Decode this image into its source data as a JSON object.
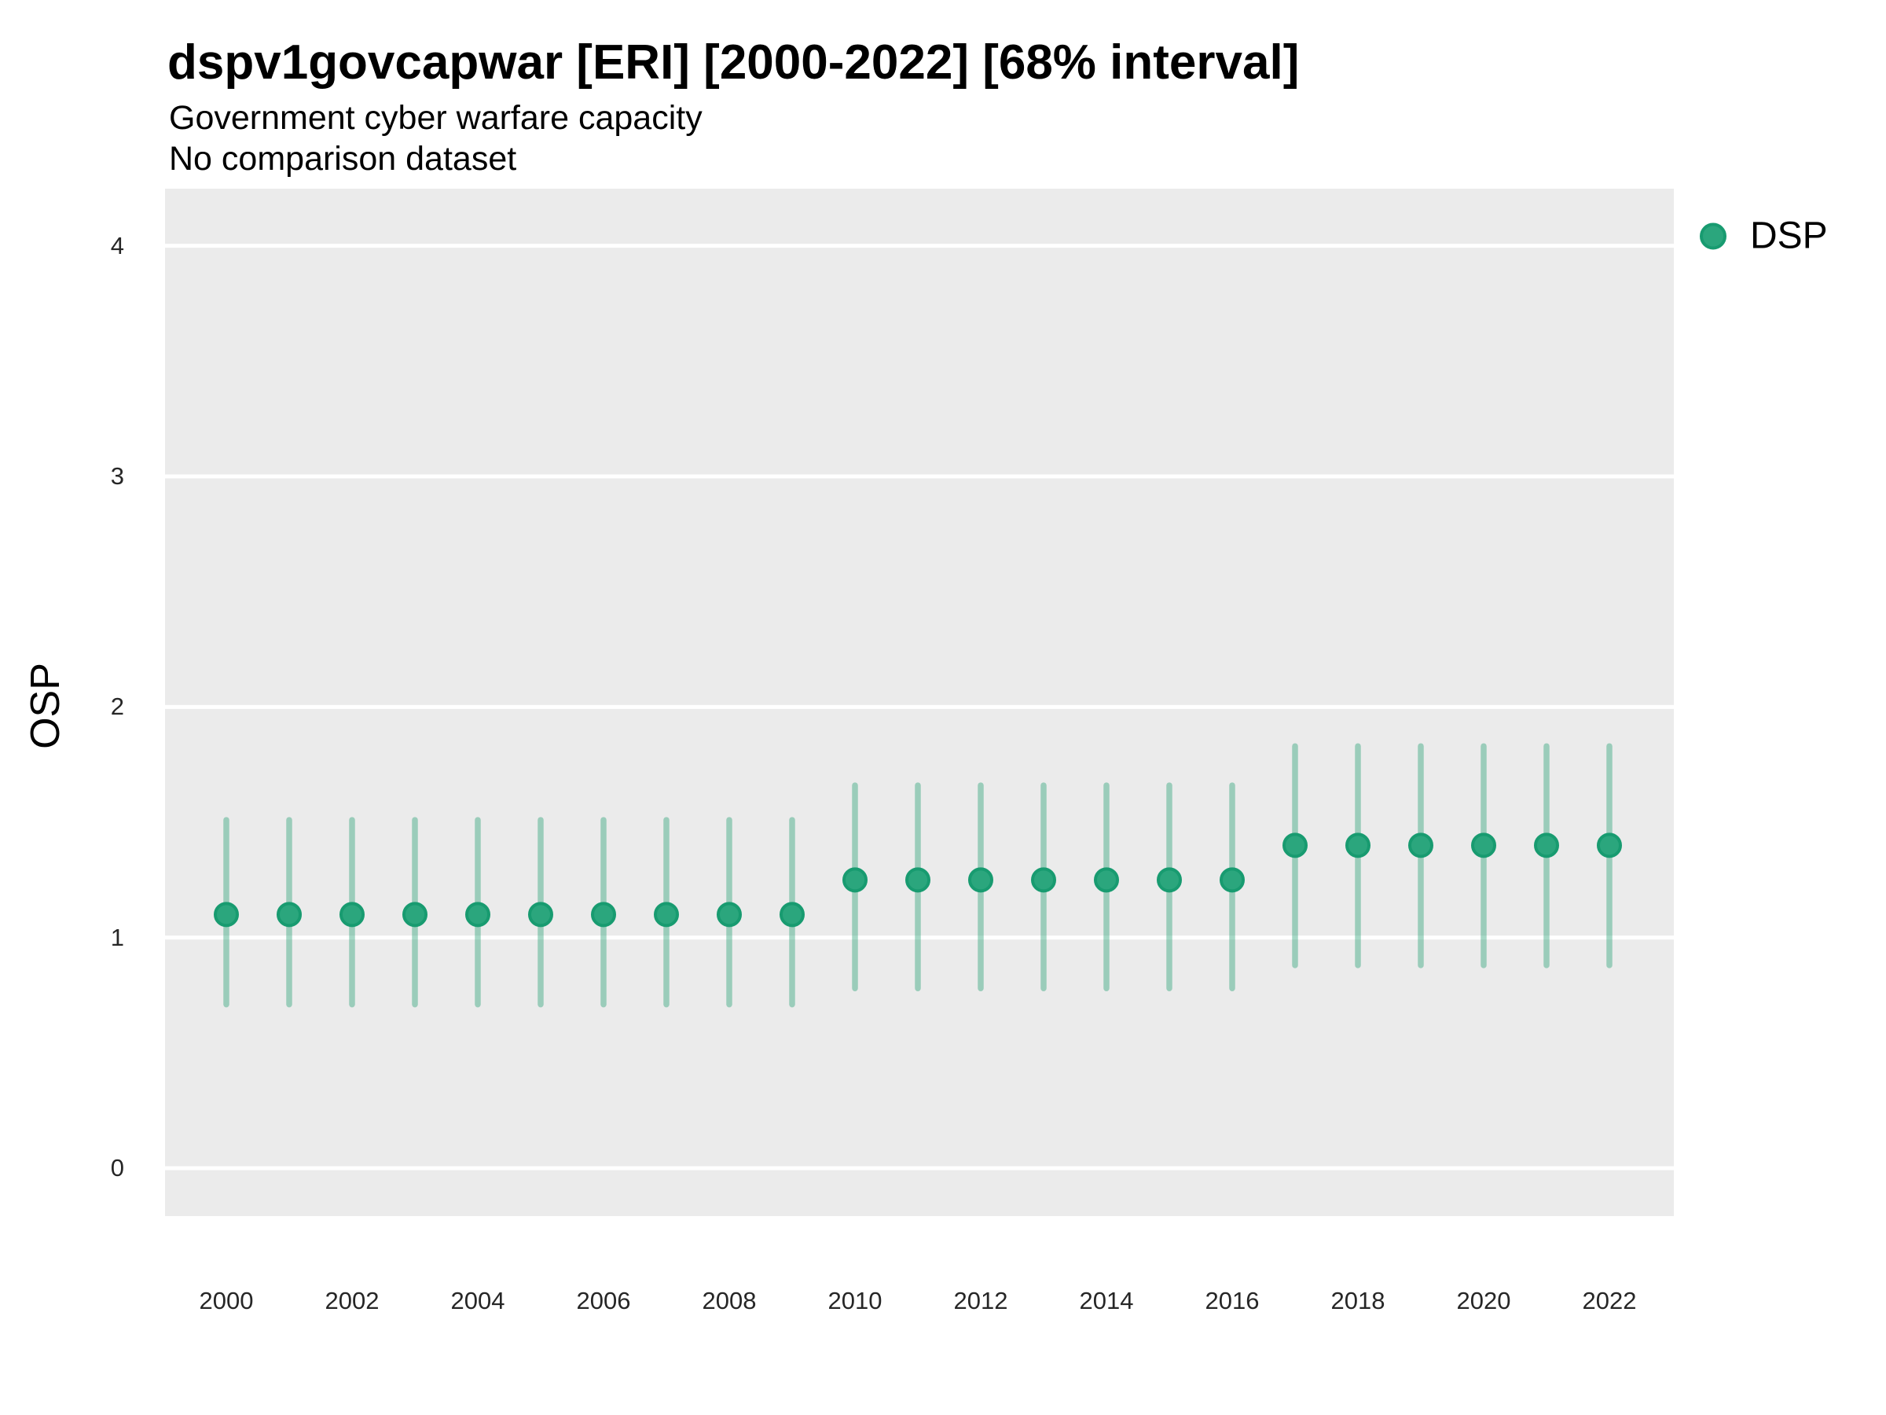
{
  "header": {
    "title": "dspv1govcapwar [ERI] [2000-2022] [68% interval]",
    "subtitle": "Government cyber warfare capacity",
    "note": "No comparison dataset"
  },
  "legend": {
    "label": "DSP"
  },
  "chart_data": {
    "type": "scatter",
    "subtype": "point-estimates-with-68pct-interval-bars",
    "title": "dspv1govcapwar [ERI] [2000-2022] [68% interval]",
    "subtitle": "Government cyber warfare capacity",
    "note": "No comparison dataset",
    "xlabel": "",
    "ylabel": "OSP",
    "interval_level": "68%",
    "x": [
      2000,
      2001,
      2002,
      2003,
      2004,
      2005,
      2006,
      2007,
      2008,
      2009,
      2010,
      2011,
      2012,
      2013,
      2014,
      2015,
      2016,
      2017,
      2018,
      2019,
      2020,
      2021,
      2022
    ],
    "series": [
      {
        "name": "DSP",
        "est": [
          1.1,
          1.1,
          1.1,
          1.1,
          1.1,
          1.1,
          1.1,
          1.1,
          1.1,
          1.1,
          1.25,
          1.25,
          1.25,
          1.25,
          1.25,
          1.25,
          1.25,
          1.4,
          1.4,
          1.4,
          1.4,
          1.4,
          1.4
        ],
        "lo": [
          0.71,
          0.71,
          0.71,
          0.71,
          0.71,
          0.71,
          0.71,
          0.71,
          0.71,
          0.71,
          0.78,
          0.78,
          0.78,
          0.78,
          0.78,
          0.78,
          0.78,
          0.88,
          0.88,
          0.88,
          0.88,
          0.88,
          0.88
        ],
        "hi": [
          1.51,
          1.51,
          1.51,
          1.51,
          1.51,
          1.51,
          1.51,
          1.51,
          1.51,
          1.51,
          1.66,
          1.66,
          1.66,
          1.66,
          1.66,
          1.66,
          1.66,
          1.83,
          1.83,
          1.83,
          1.83,
          1.83,
          1.83
        ]
      }
    ],
    "yticks": [
      0,
      1,
      2,
      3,
      4
    ],
    "xticks": [
      2000,
      2002,
      2004,
      2006,
      2008,
      2010,
      2012,
      2014,
      2016,
      2018,
      2020,
      2022
    ],
    "ylim": [
      -0.21,
      4.25
    ],
    "grid": "major-horizontal-white-on-gray",
    "legend_position": "right-top",
    "colors": {
      "point_fill": "#2BA67D",
      "point_stroke": "#189B70",
      "interval_bar": "rgba(42, 161, 119, 0.42)",
      "panel_background": "#EBEBEB",
      "gridline": "#FFFFFF",
      "tick_text": "#262626",
      "text": "#000000"
    }
  }
}
